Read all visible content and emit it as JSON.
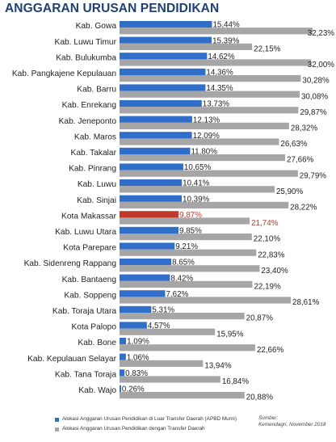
{
  "title": "ANGGARAN URUSAN PENDIDIKAN",
  "chart_data": {
    "type": "bar",
    "orientation": "horizontal",
    "categories": [
      "Kab. Gowa",
      "Kab. Luwu Timur",
      "Kab. Bulukumba",
      "Kab. Pangkajene Kepulauan",
      "Kab. Barru",
      "Kab. Enrekang",
      "Kab. Jeneponto",
      "Kab. Maros",
      "Kab. Takalar",
      "Kab. Pinrang",
      "Kab. Luwu",
      "Kab. Sinjai",
      "Kota Makassar",
      "Kab. Luwu Utara",
      "Kota Parepare",
      "Kab. Sidenreng Rappang",
      "Kab. Bantaeng",
      "Kab. Soppeng",
      "Kab. Toraja Utara",
      "Kota Palopo",
      "Kab. Bone",
      "Kab. Kepulauan Selayar",
      "Kab. Tana Toraja",
      "Kab. Wajo"
    ],
    "series": [
      {
        "name": "Alokasi Anggaran Urusan Pendidikan di Luar Transfer Daerah (APBD Murni)",
        "color": "#2f6fca",
        "values": [
          15.44,
          15.39,
          14.62,
          14.36,
          14.35,
          13.73,
          12.13,
          12.09,
          11.8,
          10.65,
          10.41,
          10.39,
          9.87,
          9.85,
          9.21,
          8.65,
          8.42,
          7.62,
          5.31,
          4.57,
          1.09,
          1.06,
          0.83,
          0.26
        ],
        "labels": [
          "15,44%",
          "15,39%",
          "14,62%",
          "14,36%",
          "14,35%",
          "13,73%",
          "12,13%",
          "12,09%",
          "11,80%",
          "10,65%",
          "10,41%",
          "10,39%",
          "9,87%",
          "9,85%",
          "9,21%",
          "8,65%",
          "8,42%",
          "7,62%",
          "5,31%",
          "4,57%",
          "1,09%",
          "1,06%",
          "0,83%",
          "0,26%"
        ]
      },
      {
        "name": "Alokasi Anggaran Urusan Pendidikan dengan Transfer Daerah",
        "color": "#a6a6a6",
        "values": [
          32.23,
          22.15,
          32.0,
          30.28,
          30.08,
          29.87,
          28.32,
          26.63,
          27.66,
          29.79,
          25.9,
          28.22,
          21.74,
          22.1,
          22.83,
          23.4,
          22.19,
          28.61,
          20.87,
          15.95,
          22.66,
          13.94,
          16.84,
          20.88
        ],
        "labels": [
          "32,23%",
          "22,15%",
          "32,00%",
          "30,28%",
          "30,08%",
          "29,87%",
          "28,32%",
          "26,63%",
          "27,66%",
          "29,79%",
          "25,90%",
          "28,22%",
          "21,74%",
          "22,10%",
          "22,83%",
          "23,40%",
          "22,19%",
          "28,61%",
          "20,87%",
          "15,95%",
          "22,66%",
          "13,94%",
          "16,84%",
          "20,88%"
        ]
      }
    ],
    "highlight": {
      "category": "Kota Makassar",
      "bar_color": "#c0392b",
      "label_color": "#c0392b"
    },
    "xlim": [
      0,
      34
    ],
    "grid": false,
    "legend_position": "bottom-left"
  },
  "source": {
    "line1": "Sumber:",
    "line2": "Kemendagri, November 2018"
  }
}
